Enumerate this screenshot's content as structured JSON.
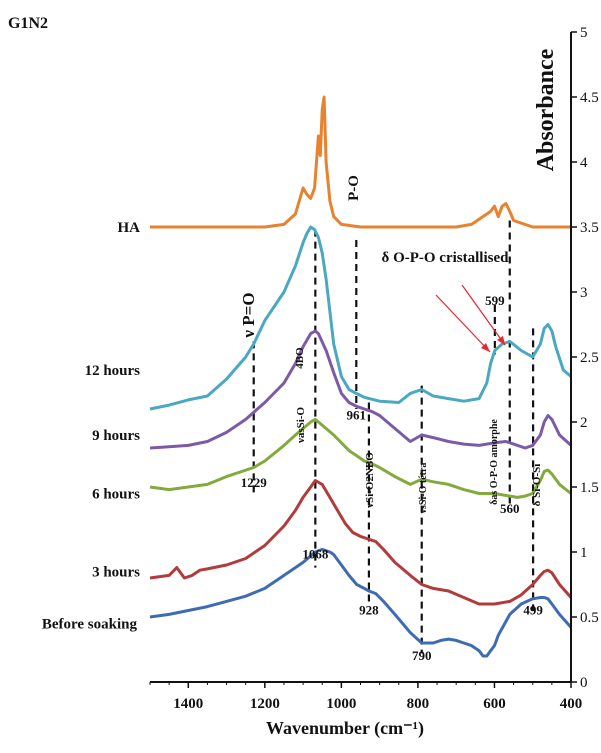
{
  "figure_label": "G1N2",
  "chart_data": {
    "type": "line",
    "xlabel": "Wavenumber (cm⁻¹)",
    "ylabel": "Absorbance",
    "x_ticks": [
      "1400",
      "1200",
      "1000",
      "800",
      "600",
      "400"
    ],
    "y_ticks": [
      "0",
      "0.5",
      "1",
      "1.5",
      "2",
      "2.5",
      "3",
      "3.5",
      "4",
      "4.5",
      "5"
    ],
    "xlim": [
      1500,
      400
    ],
    "ylim": [
      0,
      5
    ],
    "x_reversed": true,
    "series": [
      {
        "name": "HA",
        "color": "#e8822e",
        "x": [
          1500,
          1400,
          1300,
          1200,
          1150,
          1120,
          1100,
          1090,
          1080,
          1070,
          1060,
          1055,
          1050,
          1045,
          1040,
          1030,
          1020,
          1000,
          950,
          900,
          800,
          700,
          660,
          640,
          620,
          610,
          600,
          590,
          580,
          570,
          560,
          550,
          500,
          450,
          400
        ],
        "y": [
          3.5,
          3.5,
          3.5,
          3.5,
          3.52,
          3.6,
          3.8,
          3.75,
          3.72,
          3.8,
          4.2,
          4.05,
          4.4,
          4.5,
          4.0,
          3.7,
          3.58,
          3.52,
          3.5,
          3.5,
          3.5,
          3.5,
          3.52,
          3.56,
          3.6,
          3.62,
          3.66,
          3.58,
          3.66,
          3.68,
          3.62,
          3.55,
          3.5,
          3.5,
          3.5
        ]
      },
      {
        "name": "12 hours",
        "color": "#4aa8c0",
        "x": [
          1500,
          1450,
          1400,
          1350,
          1300,
          1250,
          1229,
          1200,
          1150,
          1120,
          1100,
          1090,
          1080,
          1070,
          1060,
          1050,
          1040,
          1030,
          1020,
          1000,
          980,
          961,
          940,
          900,
          850,
          820,
          790,
          760,
          720,
          680,
          640,
          620,
          610,
          599,
          580,
          560,
          530,
          500,
          480,
          470,
          460,
          450,
          440,
          420,
          400
        ],
        "y": [
          2.1,
          2.13,
          2.17,
          2.2,
          2.33,
          2.5,
          2.6,
          2.78,
          3.0,
          3.2,
          3.38,
          3.45,
          3.5,
          3.48,
          3.42,
          3.3,
          3.1,
          2.85,
          2.6,
          2.35,
          2.25,
          2.22,
          2.19,
          2.16,
          2.15,
          2.22,
          2.25,
          2.2,
          2.18,
          2.16,
          2.18,
          2.3,
          2.45,
          2.55,
          2.6,
          2.62,
          2.55,
          2.5,
          2.6,
          2.72,
          2.75,
          2.7,
          2.58,
          2.4,
          2.35
        ]
      },
      {
        "name": "9 hours",
        "color": "#7b5ba8",
        "x": [
          1500,
          1450,
          1400,
          1350,
          1300,
          1250,
          1200,
          1150,
          1120,
          1100,
          1080,
          1068,
          1060,
          1040,
          1020,
          1000,
          980,
          960,
          940,
          920,
          900,
          860,
          820,
          790,
          760,
          720,
          680,
          640,
          600,
          570,
          550,
          520,
          500,
          480,
          470,
          460,
          450,
          430,
          400
        ],
        "y": [
          1.8,
          1.81,
          1.82,
          1.85,
          1.92,
          2.02,
          2.15,
          2.3,
          2.45,
          2.58,
          2.68,
          2.7,
          2.68,
          2.55,
          2.38,
          2.22,
          2.15,
          2.12,
          2.1,
          2.08,
          2.05,
          1.95,
          1.85,
          1.9,
          1.88,
          1.85,
          1.83,
          1.82,
          1.84,
          1.85,
          1.83,
          1.8,
          1.82,
          1.9,
          2.0,
          2.05,
          2.02,
          1.9,
          1.82
        ]
      },
      {
        "name": "6 hours",
        "color": "#82aa3c",
        "x": [
          1500,
          1450,
          1400,
          1350,
          1300,
          1229,
          1200,
          1150,
          1120,
          1100,
          1080,
          1068,
          1060,
          1040,
          1020,
          1000,
          980,
          960,
          940,
          928,
          900,
          860,
          820,
          790,
          760,
          720,
          680,
          640,
          600,
          560,
          540,
          520,
          500,
          480,
          470,
          460,
          450,
          430,
          400
        ],
        "y": [
          1.5,
          1.48,
          1.5,
          1.52,
          1.58,
          1.65,
          1.7,
          1.82,
          1.9,
          1.95,
          2.0,
          2.02,
          2.0,
          1.95,
          1.9,
          1.84,
          1.78,
          1.74,
          1.7,
          1.69,
          1.65,
          1.58,
          1.52,
          1.56,
          1.54,
          1.52,
          1.48,
          1.45,
          1.45,
          1.43,
          1.42,
          1.43,
          1.45,
          1.55,
          1.62,
          1.63,
          1.6,
          1.52,
          1.45
        ]
      },
      {
        "name": "3 hours",
        "color": "#b23b3b",
        "x": [
          1500,
          1450,
          1430,
          1410,
          1390,
          1370,
          1350,
          1300,
          1250,
          1200,
          1150,
          1120,
          1100,
          1080,
          1068,
          1050,
          1030,
          1010,
          990,
          970,
          950,
          930,
          910,
          890,
          860,
          820,
          790,
          760,
          720,
          680,
          640,
          600,
          560,
          530,
          500,
          480,
          470,
          460,
          450,
          430,
          400
        ],
        "y": [
          0.8,
          0.82,
          0.88,
          0.8,
          0.82,
          0.86,
          0.87,
          0.9,
          0.95,
          1.05,
          1.2,
          1.32,
          1.42,
          1.5,
          1.55,
          1.52,
          1.42,
          1.32,
          1.22,
          1.15,
          1.12,
          1.1,
          1.08,
          1.02,
          0.92,
          0.82,
          0.75,
          0.72,
          0.7,
          0.65,
          0.6,
          0.6,
          0.62,
          0.67,
          0.75,
          0.82,
          0.85,
          0.86,
          0.84,
          0.75,
          0.65
        ]
      },
      {
        "name": "Before soaking",
        "color": "#3f6bb3",
        "x": [
          1500,
          1450,
          1400,
          1350,
          1300,
          1250,
          1200,
          1150,
          1100,
          1080,
          1068,
          1050,
          1030,
          1020,
          1000,
          980,
          960,
          940,
          928,
          910,
          890,
          860,
          820,
          790,
          760,
          740,
          720,
          700,
          680,
          660,
          640,
          630,
          620,
          610,
          600,
          590,
          560,
          530,
          500,
          480,
          470,
          460,
          450,
          430,
          400
        ],
        "y": [
          0.5,
          0.52,
          0.55,
          0.58,
          0.62,
          0.66,
          0.72,
          0.82,
          0.92,
          0.97,
          1.0,
          1.02,
          1.0,
          0.98,
          0.9,
          0.82,
          0.75,
          0.72,
          0.7,
          0.68,
          0.62,
          0.52,
          0.38,
          0.3,
          0.3,
          0.32,
          0.33,
          0.32,
          0.3,
          0.28,
          0.24,
          0.2,
          0.2,
          0.24,
          0.28,
          0.36,
          0.52,
          0.6,
          0.64,
          0.65,
          0.65,
          0.64,
          0.6,
          0.52,
          0.42
        ]
      }
    ],
    "vertical_guides": [
      1229,
      1068,
      961,
      928,
      790,
      599,
      560,
      499
    ],
    "annotations": {
      "peak_labels": [
        {
          "text": "1229",
          "x": 1229,
          "y": 1.5
        },
        {
          "text": "1068",
          "x": 1068,
          "y": 0.95
        },
        {
          "text": "961",
          "x": 961,
          "y": 2.02
        },
        {
          "text": "928",
          "x": 928,
          "y": 0.52
        },
        {
          "text": "790",
          "x": 790,
          "y": 0.17
        },
        {
          "text": "599",
          "x": 599,
          "y": 2.9
        },
        {
          "text": "560",
          "x": 560,
          "y": 1.3
        },
        {
          "text": "499",
          "x": 499,
          "y": 0.52
        }
      ],
      "band_labels": [
        {
          "text": "ν P=O"
        },
        {
          "text": "P-O"
        },
        {
          "text": "δ O-P-O cristallised"
        },
        {
          "text": "4BO"
        },
        {
          "text": "νasSi-O"
        },
        {
          "text": "νSi-O2NBO"
        },
        {
          "text": "νsSi-O tétra"
        },
        {
          "text": "δas O-P-O amorphe"
        },
        {
          "text": "δ Si-O-Si"
        }
      ]
    }
  }
}
